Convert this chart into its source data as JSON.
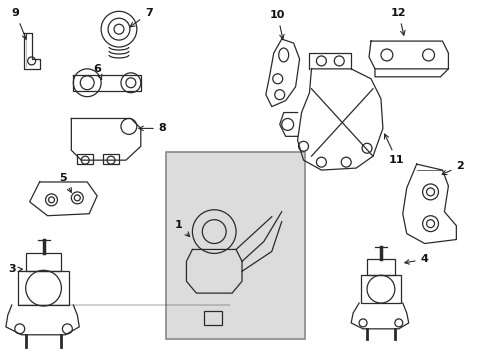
{
  "bg_color": "#ffffff",
  "border_color": "#888888",
  "line_color": "#2a2a2a",
  "label_color": "#111111",
  "box_fill": "#dcdcdc",
  "fig_width": 4.89,
  "fig_height": 3.6,
  "dpi": 100
}
